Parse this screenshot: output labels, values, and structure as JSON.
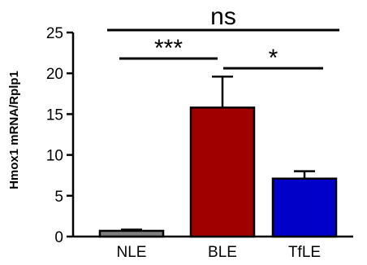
{
  "chart_data": {
    "type": "bar",
    "categories": [
      "NLE",
      "BLE",
      "TfLE"
    ],
    "values": [
      0.7,
      15.8,
      7.1
    ],
    "error": [
      0.15,
      3.8,
      0.9
    ],
    "colors": [
      "#7f7f7f",
      "#a00000",
      "#0000c8"
    ],
    "ylabel": "Hmox1 mRNA/Rplp1",
    "ylim": [
      0,
      25
    ],
    "yticks": [
      0,
      5,
      10,
      15,
      20,
      25
    ],
    "significance": [
      {
        "from": "NLE",
        "to": "TfLE",
        "label": "ns"
      },
      {
        "from": "NLE",
        "to": "BLE",
        "label": "***"
      },
      {
        "from": "BLE",
        "to": "TfLE",
        "label": "*"
      }
    ]
  }
}
